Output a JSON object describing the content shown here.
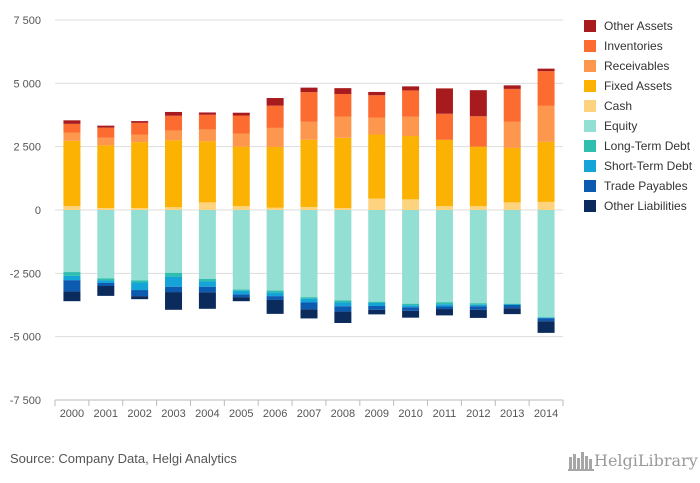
{
  "chart_data": {
    "type": "bar",
    "stacked": true,
    "categories": [
      "2000",
      "2001",
      "2002",
      "2003",
      "2004",
      "2005",
      "2006",
      "2007",
      "2008",
      "2009",
      "2010",
      "2011",
      "2012",
      "2013",
      "2014"
    ],
    "ylim": [
      -7500,
      7500
    ],
    "yticks": [
      7500,
      5000,
      2500,
      0,
      -2500,
      -5000,
      -7500
    ],
    "ytick_labels": [
      "7 500",
      "5 000",
      "2 500",
      "0",
      "-2 500",
      "-5 000",
      "-7 500"
    ],
    "grid": true,
    "legend_position": "right",
    "series": [
      {
        "name": "Cash",
        "side": "assets",
        "color": "#fdd380",
        "values": [
          150,
          80,
          80,
          110,
          300,
          150,
          90,
          120,
          80,
          450,
          420,
          150,
          150,
          300,
          320
        ]
      },
      {
        "name": "Fixed Assets",
        "side": "assets",
        "color": "#fbb203",
        "values": [
          2580,
          2470,
          2600,
          2640,
          2410,
          2350,
          2400,
          2650,
          2770,
          2530,
          2500,
          2620,
          2350,
          2150,
          2370
        ]
      },
      {
        "name": "Receivables",
        "side": "assets",
        "color": "#fd974e",
        "values": [
          330,
          300,
          300,
          390,
          470,
          520,
          750,
          710,
          840,
          670,
          760,
          0,
          0,
          1030,
          1420
        ]
      },
      {
        "name": "Inventories",
        "side": "assets",
        "color": "#fc6c30",
        "values": [
          340,
          400,
          460,
          580,
          580,
          710,
          880,
          1170,
          890,
          880,
          1040,
          1030,
          1200,
          1300,
          1370
        ]
      },
      {
        "name": "Other Assets",
        "side": "assets",
        "color": "#a71a1e",
        "values": [
          140,
          80,
          70,
          150,
          90,
          110,
          300,
          180,
          230,
          130,
          160,
          1000,
          1030,
          140,
          100
        ]
      },
      {
        "name": "Equity",
        "side": "liabilities",
        "color": "#94dfd4",
        "values": [
          2450,
          2700,
          2780,
          2480,
          2720,
          3140,
          3180,
          3440,
          3570,
          3620,
          3700,
          3640,
          3680,
          3700,
          4230
        ]
      },
      {
        "name": "Long-Term Debt",
        "side": "liabilities",
        "color": "#30bfae",
        "values": [
          150,
          80,
          80,
          150,
          100,
          50,
          80,
          60,
          80,
          50,
          60,
          80,
          60,
          30,
          20
        ]
      },
      {
        "name": "Short-Term Debt",
        "side": "liabilities",
        "color": "#14a4d8",
        "values": [
          170,
          100,
          300,
          400,
          210,
          140,
          140,
          150,
          150,
          120,
          80,
          90,
          60,
          20,
          20
        ]
      },
      {
        "name": "Trade Payables",
        "side": "liabilities",
        "color": "#0d5bb0",
        "values": [
          450,
          120,
          240,
          210,
          220,
          110,
          150,
          270,
          210,
          150,
          140,
          100,
          140,
          130,
          120
        ]
      },
      {
        "name": "Other Liabilities",
        "side": "liabilities",
        "color": "#0a2b5c",
        "values": [
          380,
          390,
          120,
          700,
          650,
          160,
          550,
          360,
          450,
          180,
          270,
          250,
          320,
          230,
          460
        ]
      }
    ]
  },
  "legend": {
    "items": [
      {
        "label": "Other Assets",
        "color": "#a71a1e"
      },
      {
        "label": "Inventories",
        "color": "#fc6c30"
      },
      {
        "label": "Receivables",
        "color": "#fd974e"
      },
      {
        "label": "Fixed Assets",
        "color": "#fbb203"
      },
      {
        "label": "Cash",
        "color": "#fdd380"
      },
      {
        "label": "Equity",
        "color": "#94dfd4"
      },
      {
        "label": "Long-Term Debt",
        "color": "#30bfae"
      },
      {
        "label": "Short-Term Debt",
        "color": "#14a4d8"
      },
      {
        "label": "Trade Payables",
        "color": "#0d5bb0"
      },
      {
        "label": "Other Liabilities",
        "color": "#0a2b5c"
      }
    ]
  },
  "footer": {
    "source": "Source: Company Data, Helgi Analytics",
    "logo_text": "HelgiLibrary",
    "logo_icon": "helgi-library-books-icon"
  }
}
